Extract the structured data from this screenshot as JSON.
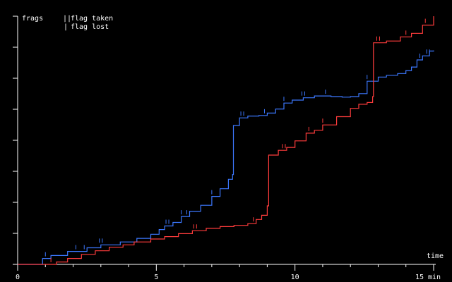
{
  "chart_data": {
    "type": "line",
    "title": "",
    "ylabel": "frags",
    "xlabel": "time",
    "x_ticks": [
      "0",
      "5",
      "10",
      "15 min"
    ],
    "xlim": [
      0,
      15
    ],
    "ylim": [
      0,
      42
    ],
    "y_tick_count": 8,
    "legend": {
      "placement": "top-left",
      "items": [
        {
          "marker": "||",
          "label": "flag taken"
        },
        {
          "marker": "|",
          "label": "flag lost"
        }
      ]
    },
    "series": [
      {
        "color": "#3c78ff",
        "points": [
          [
            0.5,
            0
          ],
          [
            0.9,
            1
          ],
          [
            1.2,
            1.5
          ],
          [
            1.8,
            2.2
          ],
          [
            2.5,
            2.8
          ],
          [
            3.0,
            3.3
          ],
          [
            3.7,
            3.8
          ],
          [
            4.3,
            4.4
          ],
          [
            4.8,
            5.1
          ],
          [
            5.1,
            5.9
          ],
          [
            5.3,
            6.5
          ],
          [
            5.6,
            7.1
          ],
          [
            5.9,
            8.1
          ],
          [
            6.2,
            9.0
          ],
          [
            6.6,
            10.0
          ],
          [
            7.0,
            11.5
          ],
          [
            7.3,
            12.8
          ],
          [
            7.6,
            14.4
          ],
          [
            7.75,
            15.2
          ],
          [
            7.78,
            23.5
          ],
          [
            8.0,
            24.8
          ],
          [
            8.3,
            25.1
          ],
          [
            8.7,
            25.2
          ],
          [
            9.0,
            25.6
          ],
          [
            9.3,
            26.3
          ],
          [
            9.6,
            27.3
          ],
          [
            9.9,
            27.8
          ],
          [
            10.3,
            28.2
          ],
          [
            10.7,
            28.5
          ],
          [
            11.0,
            28.5
          ],
          [
            11.3,
            28.4
          ],
          [
            11.7,
            28.3
          ],
          [
            12.0,
            28.4
          ],
          [
            12.3,
            28.9
          ],
          [
            12.6,
            31.0
          ],
          [
            13.0,
            31.7
          ],
          [
            13.3,
            32.0
          ],
          [
            13.7,
            32.3
          ],
          [
            14.0,
            32.8
          ],
          [
            14.2,
            33.4
          ],
          [
            14.4,
            34.6
          ],
          [
            14.6,
            35.3
          ],
          [
            14.85,
            36.1
          ],
          [
            15.0,
            36.2
          ]
        ]
      },
      {
        "color": "#ff3c3c",
        "points": [
          [
            1.0,
            0
          ],
          [
            1.4,
            0.4
          ],
          [
            1.8,
            1.0
          ],
          [
            2.3,
            1.7
          ],
          [
            2.8,
            2.3
          ],
          [
            3.3,
            2.9
          ],
          [
            3.8,
            3.3
          ],
          [
            4.2,
            3.8
          ],
          [
            4.8,
            4.3
          ],
          [
            5.3,
            4.7
          ],
          [
            5.8,
            5.2
          ],
          [
            6.3,
            5.7
          ],
          [
            6.8,
            6.1
          ],
          [
            7.3,
            6.4
          ],
          [
            7.8,
            6.6
          ],
          [
            8.3,
            6.9
          ],
          [
            8.6,
            7.6
          ],
          [
            8.8,
            8.3
          ],
          [
            9.0,
            9.9
          ],
          [
            9.05,
            18.5
          ],
          [
            9.4,
            19.3
          ],
          [
            9.7,
            19.8
          ],
          [
            10.0,
            20.9
          ],
          [
            10.4,
            22.2
          ],
          [
            10.7,
            22.7
          ],
          [
            11.0,
            23.6
          ],
          [
            11.5,
            25.0
          ],
          [
            12.0,
            26.4
          ],
          [
            12.3,
            27.1
          ],
          [
            12.6,
            27.4
          ],
          [
            12.8,
            28.4
          ],
          [
            12.83,
            37.5
          ],
          [
            13.3,
            37.8
          ],
          [
            13.8,
            38.5
          ],
          [
            14.2,
            39.1
          ],
          [
            14.6,
            40.5
          ],
          [
            15.0,
            42.0
          ]
        ]
      }
    ],
    "event_marks": [
      {
        "series": 0,
        "kind": "flag taken",
        "x": 3.0
      },
      {
        "series": 0,
        "kind": "flag taken",
        "x": 5.4
      },
      {
        "series": 0,
        "kind": "flag taken",
        "x": 8.1
      },
      {
        "series": 0,
        "kind": "flag taken",
        "x": 10.3
      },
      {
        "series": 0,
        "kind": "flag taken",
        "x": 14.8
      },
      {
        "series": 0,
        "kind": "flag lost",
        "x": 1.0
      },
      {
        "series": 0,
        "kind": "flag lost",
        "x": 2.1
      },
      {
        "series": 0,
        "kind": "flag lost",
        "x": 2.4
      },
      {
        "series": 0,
        "kind": "flag lost",
        "x": 5.9
      },
      {
        "series": 0,
        "kind": "flag lost",
        "x": 6.1
      },
      {
        "series": 0,
        "kind": "flag lost",
        "x": 7.0
      },
      {
        "series": 0,
        "kind": "flag lost",
        "x": 8.9
      },
      {
        "series": 0,
        "kind": "flag lost",
        "x": 9.6
      },
      {
        "series": 0,
        "kind": "flag lost",
        "x": 11.1
      },
      {
        "series": 0,
        "kind": "flag lost",
        "x": 12.6
      },
      {
        "series": 0,
        "kind": "flag lost",
        "x": 14.5
      },
      {
        "series": 1,
        "kind": "flag taken",
        "x": 6.4
      },
      {
        "series": 1,
        "kind": "flag taken",
        "x": 9.6
      },
      {
        "series": 1,
        "kind": "flag taken",
        "x": 13.0
      },
      {
        "series": 1,
        "kind": "flag lost",
        "x": 1.2
      },
      {
        "series": 1,
        "kind": "flag lost",
        "x": 8.5
      },
      {
        "series": 1,
        "kind": "flag lost",
        "x": 10.5
      },
      {
        "series": 1,
        "kind": "flag lost",
        "x": 11.0
      },
      {
        "series": 1,
        "kind": "flag lost",
        "x": 14.0
      },
      {
        "series": 1,
        "kind": "flag lost",
        "x": 14.7
      }
    ]
  }
}
